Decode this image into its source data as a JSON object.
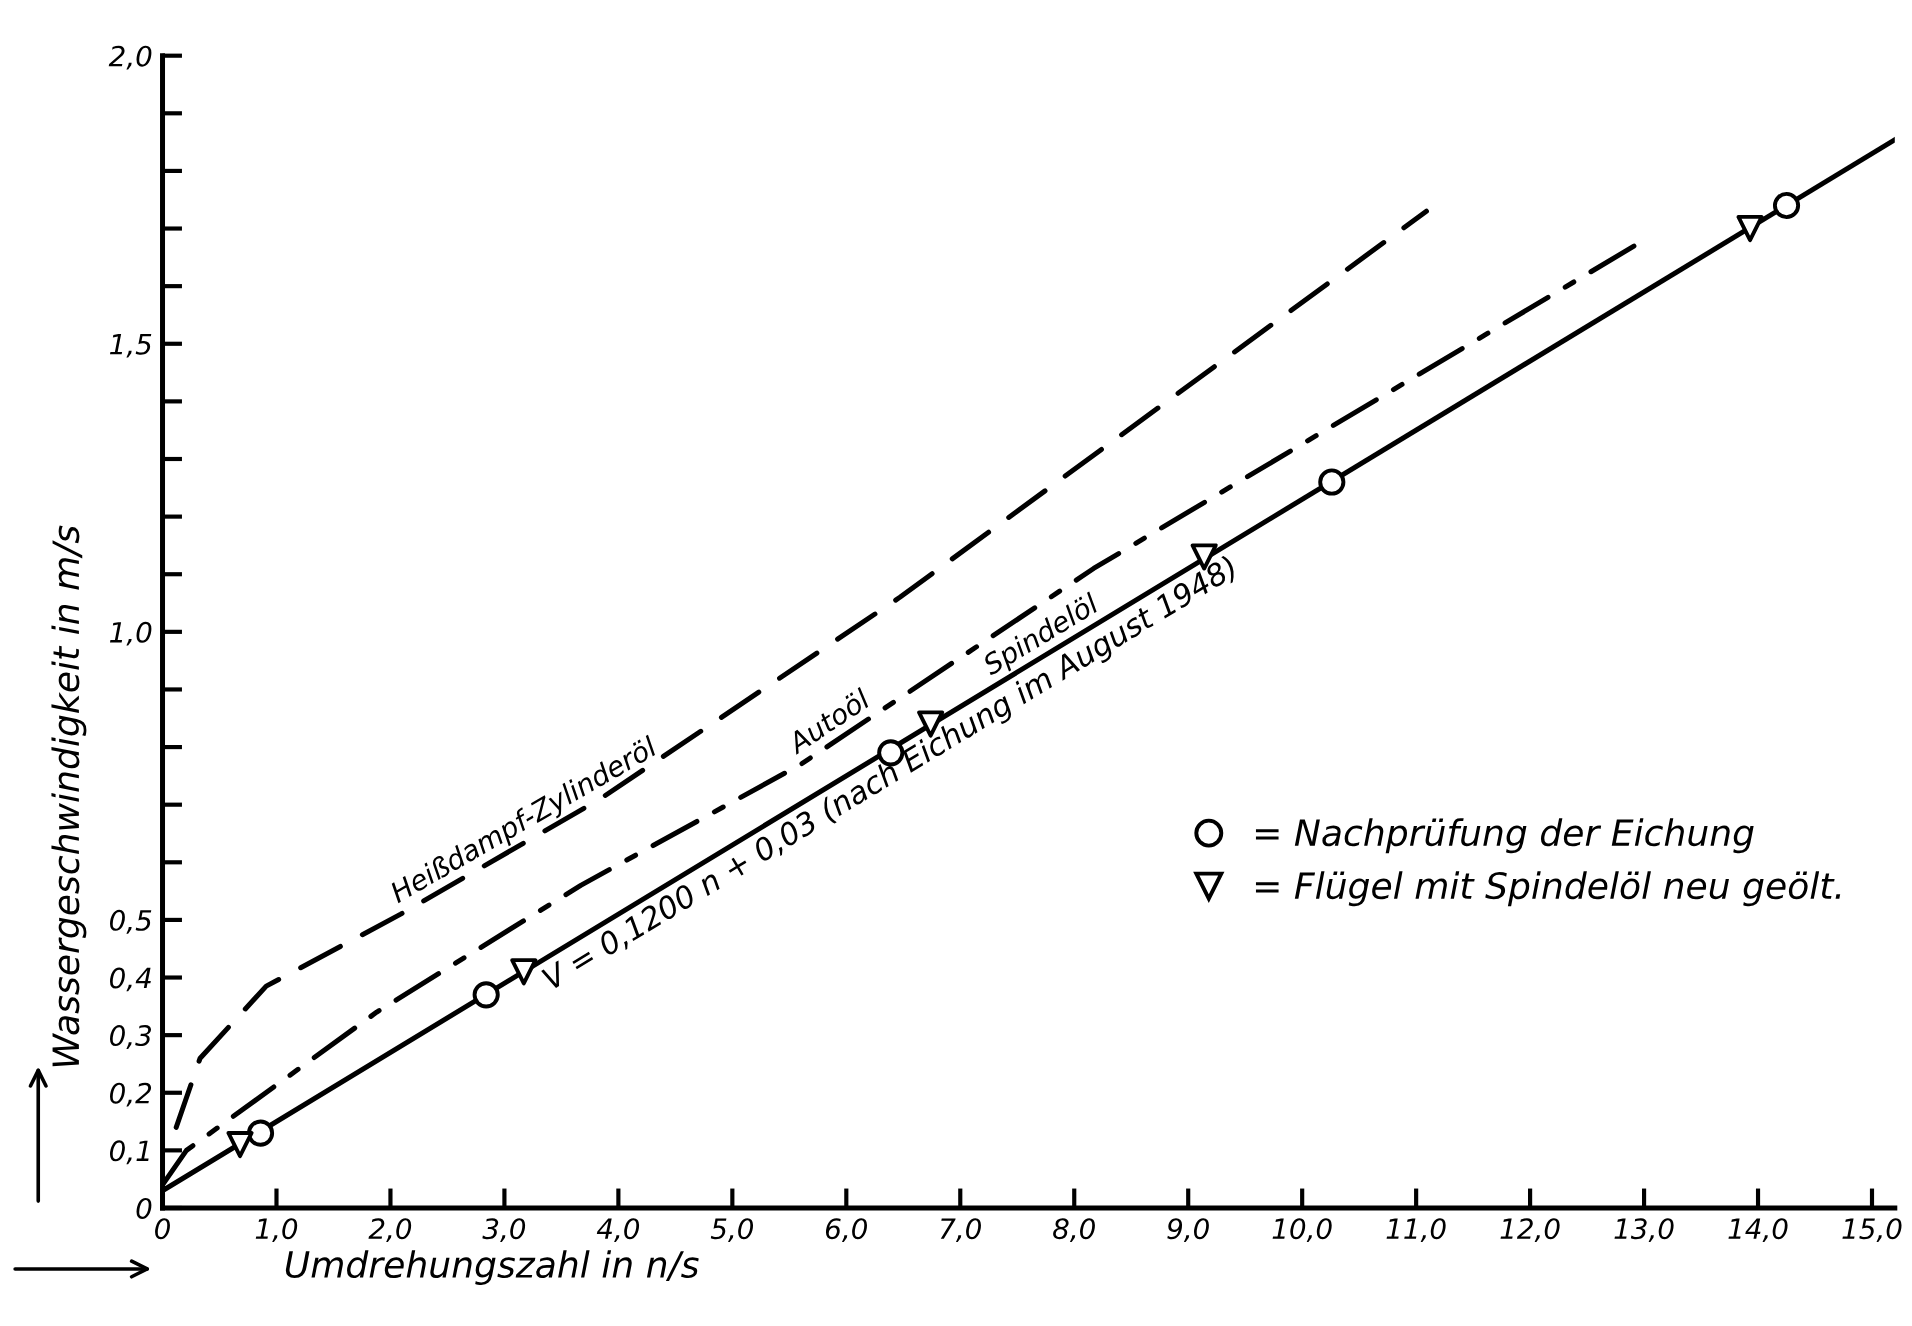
{
  "chart_data": {
    "type": "line",
    "xlabel": "Umdrehungszahl in n/s",
    "ylabel": "Wassergeschwindigkeit in m/s",
    "xlim": [
      0,
      15.2
    ],
    "ylim": [
      0,
      2.0
    ],
    "xticks": [
      0,
      {
        "value": 1,
        "label": "1,0"
      },
      {
        "value": 2,
        "label": "2,0"
      },
      {
        "value": 3,
        "label": "3,0"
      },
      {
        "value": 4,
        "label": "4,0"
      },
      {
        "value": 5,
        "label": "5,0"
      },
      {
        "value": 6,
        "label": "6,0"
      },
      {
        "value": 7,
        "label": "7,0"
      },
      {
        "value": 8,
        "label": "8,0"
      },
      {
        "value": 9,
        "label": "9,0"
      },
      {
        "value": 10,
        "label": "10,0"
      },
      {
        "value": 11,
        "label": "11,0"
      },
      {
        "value": 12,
        "label": "12,0"
      },
      {
        "value": 13,
        "label": "13,0"
      },
      {
        "value": 14,
        "label": "14,0"
      },
      {
        "value": 15,
        "label": "15,0"
      }
    ],
    "yticks": [
      0,
      {
        "value": 0.1,
        "label": "0,1"
      },
      {
        "value": 0.2,
        "label": "0,2"
      },
      {
        "value": 0.3,
        "label": "0,3"
      },
      {
        "value": 0.4,
        "label": "0,4"
      },
      {
        "value": 0.5,
        "label": "0,5"
      },
      {
        "value": 0.6,
        "label": null
      },
      {
        "value": 0.7,
        "label": null
      },
      {
        "value": 0.8,
        "label": null
      },
      {
        "value": 0.9,
        "label": null
      },
      {
        "value": 1.0,
        "label": "1,0"
      },
      {
        "value": 1.1,
        "label": null
      },
      {
        "value": 1.2,
        "label": null
      },
      {
        "value": 1.3,
        "label": null
      },
      {
        "value": 1.4,
        "label": null
      },
      {
        "value": 1.5,
        "label": "1,5"
      },
      {
        "value": 1.6,
        "label": null
      },
      {
        "value": 1.7,
        "label": null
      },
      {
        "value": 1.8,
        "label": null
      },
      {
        "value": 1.9,
        "label": null
      },
      {
        "value": 2.0,
        "label": "2,0"
      }
    ],
    "grid": false,
    "legend": "right",
    "series": [
      {
        "name": "Heißdampf-Zylinderöl",
        "line_style": "dashed",
        "color": "#000000",
        "x": [
          0.12,
          0.33,
          0.91,
          2.09,
          3.84,
          6.47,
          11.09
        ],
        "values": [
          0.14,
          0.26,
          0.385,
          0.51,
          0.71,
          1.06,
          1.73
        ]
      },
      {
        "name": "Autoöl",
        "line_style": "dashdot",
        "color": "#000000",
        "x": [
          0,
          0.21,
          1.88,
          3.67,
          5.6,
          8.17,
          13.0
        ],
        "values": [
          0.04,
          0.1,
          0.34,
          0.56,
          0.77,
          1.11,
          1.68
        ]
      },
      {
        "name": "Spindelöl",
        "line_style": "solid",
        "color": "#000000",
        "x": [
          0,
          15.2
        ],
        "values": [
          0.03,
          1.854
        ]
      },
      {
        "name": "= Nachprüfung der Eichung",
        "type": "scatter",
        "marker": "circle",
        "color": "#000000",
        "x": [
          0.86,
          2.84,
          6.39,
          10.26,
          14.25
        ],
        "values": [
          0.13,
          0.37,
          0.79,
          1.26,
          1.74
        ]
      },
      {
        "name": "= Flügel mit Spindelöl neu geölt.",
        "type": "scatter",
        "marker": "triangle",
        "color": "#000000",
        "x": [
          0.68,
          3.17,
          6.74,
          9.14,
          13.93
        ],
        "values": [
          0.11,
          0.41,
          0.84,
          1.13,
          1.7
        ]
      }
    ],
    "annotations": [
      {
        "text": "V = 0,1200 n + 0,03 (nach Eichung im August 1948)",
        "x": 3.3,
        "y": 0.43
      }
    ]
  }
}
